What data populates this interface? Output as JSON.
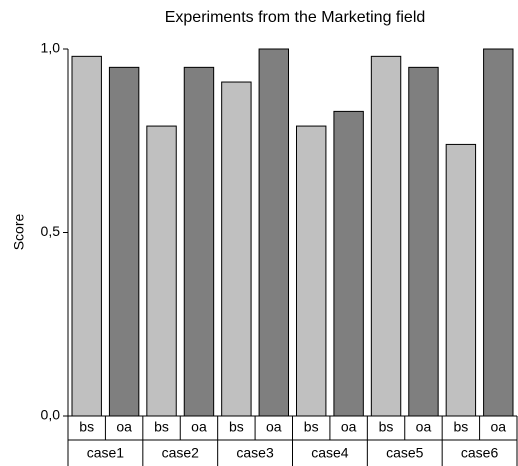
{
  "chart_data": {
    "type": "bar",
    "title": "Experiments from the Marketing field",
    "y_label": "Score",
    "categories": [
      "case1",
      "case2",
      "case3",
      "case4",
      "case5",
      "case6"
    ],
    "series": [
      {
        "name": "bs",
        "color": "#c0c0c0",
        "values": [
          0.98,
          0.79,
          0.91,
          0.79,
          0.98,
          0.74
        ]
      },
      {
        "name": "oa",
        "color": "#7f7f7f",
        "values": [
          0.95,
          0.95,
          1.0,
          0.83,
          0.95,
          1.0
        ]
      }
    ],
    "ylim": [
      0,
      1
    ],
    "yticks": [
      {
        "value": 0,
        "label": "0,0"
      },
      {
        "value": 0.5,
        "label": "0,5"
      },
      {
        "value": 1,
        "label": "1,0"
      }
    ],
    "grid": false
  }
}
